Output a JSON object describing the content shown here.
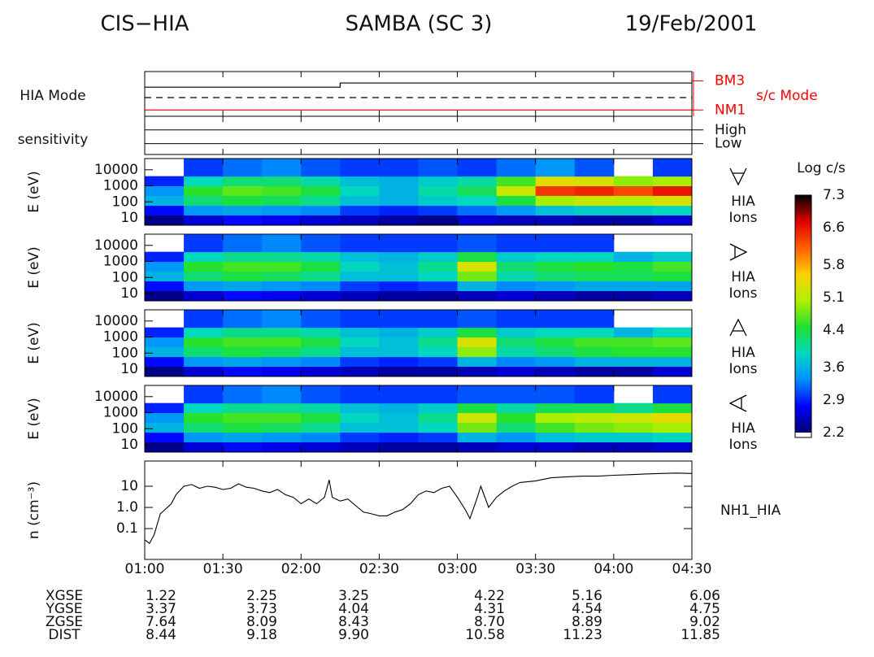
{
  "header": {
    "left": "CIS−HIA",
    "center": "SAMBA (SC 3)",
    "right": "19/Feb/2001"
  },
  "chart_data": [
    {
      "type": "step",
      "ylabel": "HIA Mode",
      "xlim": [
        1,
        4.5
      ],
      "ylim": [
        -3,
        18.5
      ],
      "yticks": [
        0,
        15
      ],
      "y2label": "s/c Mode",
      "y2color": "#ff0000",
      "y2lim": [
        -3,
        18.5
      ],
      "y2ticks": [
        {
          "value": 0,
          "label": "NM1"
        },
        {
          "value": 14,
          "label": "BM3"
        }
      ],
      "series": [
        {
          "color": "#000000",
          "dash": false,
          "x": [
            1,
            2.25,
            2.25,
            4.5
          ],
          "values": [
            11,
            11,
            13,
            13
          ]
        },
        {
          "color": "#000000",
          "dash": true,
          "x": [
            1,
            4.5
          ],
          "values": [
            6,
            6
          ]
        },
        {
          "color": "#ff0000",
          "dash": false,
          "x": [
            1,
            4.5
          ],
          "values": [
            0,
            0
          ]
        }
      ]
    },
    {
      "type": "level",
      "ylabel": "sensitivity",
      "xlim": [
        1,
        4.5
      ],
      "levels": [
        "High",
        "Low"
      ],
      "grid": true
    },
    {
      "type": "spectrogram",
      "ylabel": "E (eV)",
      "label_lines": [
        "HIA",
        "Ions"
      ],
      "icon": "down",
      "xlim": [
        1,
        4.5
      ],
      "ylog": true,
      "ylim": [
        3.5,
        50000
      ],
      "yticks": [
        10,
        100,
        1000,
        10000
      ],
      "time_bins": [
        1,
        1.25,
        1.5,
        1.75,
        2,
        2.25,
        2.5,
        2.75,
        3,
        3.25,
        3.5,
        3.75,
        4,
        4.25,
        4.5
      ],
      "energy_bins": [
        3.5,
        15,
        60,
        250,
        1000,
        4000,
        50000
      ],
      "values": [
        [
          2.3,
          2.6,
          2.8,
          2.7,
          2.6,
          2.5,
          2.4,
          2.3,
          2.6,
          2.5,
          2.5,
          2.4,
          2.4,
          2.6
        ],
        [
          2.8,
          3.4,
          3.5,
          3.4,
          3.3,
          3.0,
          2.9,
          3.0,
          3.2,
          3.4,
          3.7,
          3.8,
          3.8,
          3.9
        ],
        [
          3.6,
          4.2,
          4.4,
          4.3,
          4.1,
          3.7,
          3.6,
          3.8,
          3.9,
          4.4,
          5.0,
          5.2,
          5.1,
          5.3
        ],
        [
          3.4,
          4.5,
          4.7,
          4.6,
          4.4,
          3.9,
          3.6,
          4.0,
          4.3,
          5.2,
          6.4,
          6.5,
          6.3,
          6.6
        ],
        [
          2.9,
          3.9,
          4.2,
          4.2,
          4.0,
          3.7,
          3.6,
          3.8,
          4.0,
          4.6,
          5.4,
          5.3,
          4.9,
          5.0
        ],
        [
          null,
          3.0,
          3.2,
          3.3,
          3.1,
          3.0,
          3.0,
          3.1,
          3.0,
          3.2,
          3.4,
          3.1,
          null,
          3.0
        ]
      ]
    },
    {
      "type": "spectrogram",
      "ylabel": "E (eV)",
      "label_lines": [
        "HIA",
        "Ions"
      ],
      "icon": "right",
      "xlim": [
        1,
        4.5
      ],
      "ylog": true,
      "ylim": [
        3.5,
        50000
      ],
      "yticks": [
        10,
        100,
        1000,
        10000
      ],
      "time_bins": [
        1,
        1.25,
        1.5,
        1.75,
        2,
        2.25,
        2.5,
        2.75,
        3,
        3.25,
        3.5,
        3.75,
        4,
        4.25,
        4.5
      ],
      "energy_bins": [
        3.5,
        15,
        60,
        250,
        1000,
        4000,
        50000
      ],
      "values": [
        [
          2.3,
          2.6,
          2.8,
          2.7,
          2.6,
          2.5,
          2.4,
          2.4,
          2.5,
          2.6,
          2.5,
          2.4,
          2.4,
          2.5
        ],
        [
          2.8,
          3.4,
          3.5,
          3.4,
          3.3,
          3.0,
          2.9,
          3.0,
          3.6,
          3.3,
          3.4,
          3.5,
          3.5,
          3.5
        ],
        [
          3.6,
          4.2,
          4.4,
          4.3,
          4.1,
          3.7,
          3.7,
          3.9,
          4.8,
          4.0,
          4.2,
          4.3,
          4.3,
          4.4
        ],
        [
          3.4,
          4.5,
          4.6,
          4.6,
          4.4,
          3.9,
          3.7,
          4.1,
          5.3,
          4.2,
          4.4,
          4.5,
          4.4,
          4.6
        ],
        [
          2.9,
          3.9,
          4.1,
          4.1,
          4.0,
          3.7,
          3.6,
          3.8,
          4.4,
          3.8,
          3.9,
          3.9,
          3.6,
          3.8
        ],
        [
          null,
          3.0,
          3.2,
          3.3,
          3.1,
          3.0,
          3.0,
          3.0,
          3.1,
          3.0,
          3.0,
          3.0,
          null,
          null
        ]
      ]
    },
    {
      "type": "spectrogram",
      "ylabel": "E (eV)",
      "label_lines": [
        "HIA",
        "Ions"
      ],
      "icon": "up",
      "xlim": [
        1,
        4.5
      ],
      "ylog": true,
      "ylim": [
        3.5,
        50000
      ],
      "yticks": [
        10,
        100,
        1000,
        10000
      ],
      "time_bins": [
        1,
        1.25,
        1.5,
        1.75,
        2,
        2.25,
        2.5,
        2.75,
        3,
        3.25,
        3.5,
        3.75,
        4,
        4.25,
        4.5
      ],
      "energy_bins": [
        3.5,
        15,
        60,
        250,
        1000,
        4000,
        50000
      ],
      "values": [
        [
          2.3,
          2.6,
          2.8,
          2.7,
          2.6,
          2.5,
          2.4,
          2.4,
          2.5,
          2.6,
          2.5,
          2.4,
          2.4,
          2.6
        ],
        [
          2.8,
          3.4,
          3.5,
          3.4,
          3.3,
          3.0,
          2.9,
          3.0,
          3.6,
          3.3,
          3.4,
          3.6,
          3.6,
          3.6
        ],
        [
          3.6,
          4.2,
          4.4,
          4.3,
          4.1,
          3.7,
          3.7,
          3.9,
          4.9,
          4.0,
          4.2,
          4.4,
          4.5,
          4.5
        ],
        [
          3.4,
          4.5,
          4.6,
          4.6,
          4.4,
          3.9,
          3.7,
          4.1,
          5.3,
          4.2,
          4.4,
          4.6,
          4.6,
          4.7
        ],
        [
          2.9,
          3.9,
          4.1,
          4.1,
          4.0,
          3.7,
          3.6,
          3.8,
          4.4,
          3.8,
          3.9,
          3.9,
          3.6,
          3.9
        ],
        [
          null,
          3.0,
          3.2,
          3.3,
          3.1,
          3.0,
          3.0,
          3.0,
          3.1,
          3.0,
          3.0,
          3.0,
          null,
          null
        ]
      ]
    },
    {
      "type": "spectrogram",
      "ylabel": "E (eV)",
      "label_lines": [
        "HIA",
        "Ions"
      ],
      "icon": "left",
      "xlim": [
        1,
        4.5
      ],
      "ylog": true,
      "ylim": [
        3.5,
        50000
      ],
      "yticks": [
        10,
        100,
        1000,
        10000
      ],
      "time_bins": [
        1,
        1.25,
        1.5,
        1.75,
        2,
        2.25,
        2.5,
        2.75,
        3,
        3.25,
        3.5,
        3.75,
        4,
        4.25,
        4.5
      ],
      "energy_bins": [
        3.5,
        15,
        60,
        250,
        1000,
        4000,
        50000
      ],
      "values": [
        [
          2.3,
          2.6,
          2.8,
          2.7,
          2.6,
          2.5,
          2.4,
          2.4,
          2.5,
          2.6,
          2.6,
          2.5,
          2.5,
          2.6
        ],
        [
          2.8,
          3.4,
          3.5,
          3.4,
          3.3,
          3.0,
          2.9,
          3.0,
          3.6,
          3.4,
          3.7,
          3.8,
          3.8,
          3.9
        ],
        [
          3.6,
          4.2,
          4.4,
          4.3,
          4.1,
          3.7,
          3.7,
          3.9,
          4.8,
          4.2,
          4.6,
          4.8,
          4.9,
          5.0
        ],
        [
          3.4,
          4.5,
          4.6,
          4.6,
          4.4,
          3.9,
          3.7,
          4.1,
          5.2,
          4.5,
          5.0,
          5.1,
          5.2,
          5.4
        ],
        [
          2.9,
          3.9,
          4.1,
          4.1,
          4.0,
          3.7,
          3.6,
          3.8,
          4.4,
          4.0,
          4.3,
          4.3,
          4.1,
          4.4
        ],
        [
          null,
          3.0,
          3.2,
          3.3,
          3.1,
          3.0,
          3.0,
          3.0,
          3.1,
          3.1,
          3.1,
          3.0,
          null,
          3.0
        ]
      ]
    },
    {
      "type": "line",
      "ylabel": "n (cm⁻³)",
      "label": "NH1_HIA",
      "color": "#000000",
      "xlim": [
        1,
        4.5
      ],
      "ylog": true,
      "ylim": [
        0.0035,
        155
      ],
      "yticks": [
        0.1,
        {
          "value": 1,
          "label": "1.0"
        },
        10
      ],
      "xticks": [
        {
          "value": 1,
          "label": "01:00"
        },
        {
          "value": 1.5,
          "label": "01:30"
        },
        {
          "value": 2,
          "label": "02:00"
        },
        {
          "value": 2.5,
          "label": "02:30"
        },
        {
          "value": 3,
          "label": "03:00"
        },
        {
          "value": 3.5,
          "label": "03:30"
        },
        {
          "value": 4,
          "label": "04:00"
        },
        {
          "value": 4.5,
          "label": "04:30"
        }
      ],
      "x": [
        1.0,
        1.03,
        1.06,
        1.1,
        1.13,
        1.17,
        1.2,
        1.25,
        1.3,
        1.35,
        1.4,
        1.45,
        1.5,
        1.55,
        1.6,
        1.65,
        1.7,
        1.75,
        1.8,
        1.85,
        1.9,
        1.95,
        2.0,
        2.05,
        2.1,
        2.15,
        2.18,
        2.2,
        2.25,
        2.3,
        2.35,
        2.4,
        2.45,
        2.5,
        2.55,
        2.6,
        2.65,
        2.7,
        2.75,
        2.8,
        2.85,
        2.9,
        2.95,
        3.0,
        3.05,
        3.08,
        3.12,
        3.15,
        3.2,
        3.25,
        3.3,
        3.35,
        3.4,
        3.5,
        3.6,
        3.7,
        3.8,
        3.9,
        4.0,
        4.1,
        4.2,
        4.3,
        4.4,
        4.5
      ],
      "values": [
        0.03,
        0.02,
        0.05,
        0.5,
        0.8,
        1.5,
        4,
        10,
        12,
        8,
        10,
        9,
        7,
        8,
        13,
        9,
        8,
        6,
        5,
        7,
        4,
        3,
        1.5,
        2.5,
        1.5,
        3,
        20,
        3,
        2,
        2.5,
        1.2,
        0.6,
        0.5,
        0.4,
        0.4,
        0.6,
        0.8,
        1.5,
        4,
        6,
        5,
        8,
        10,
        3,
        0.8,
        0.3,
        2,
        10,
        1,
        3,
        6,
        10,
        15,
        18,
        25,
        28,
        30,
        30,
        33,
        35,
        38,
        40,
        42,
        40
      ]
    }
  ],
  "colorbar": {
    "title": "Log c/s",
    "clim": [
      2.2,
      7.3
    ],
    "ticks": [
      7.3,
      6.6,
      5.8,
      5.1,
      4.4,
      3.6,
      2.9,
      2.2
    ],
    "colors": [
      "#000070",
      "#0000ff",
      "#0090ff",
      "#00d8c0",
      "#20e030",
      "#b0f000",
      "#ffd000",
      "#ff6000",
      "#e00000",
      "#000000"
    ]
  },
  "ephemeris": {
    "rows": [
      {
        "label": "XGSE",
        "values": [
          "1.22",
          "2.25",
          "3.25",
          "4.22",
          "5.16",
          "6.06"
        ]
      },
      {
        "label": "YGSE",
        "values": [
          "3.37",
          "3.73",
          "4.04",
          "4.31",
          "4.54",
          "4.75"
        ]
      },
      {
        "label": "ZGSE",
        "values": [
          "7.64",
          "8.09",
          "8.43",
          "8.70",
          "8.89",
          "9.02"
        ]
      },
      {
        "label": "DIST",
        "values": [
          "8.44",
          "9.18",
          "9.90",
          "10.58",
          "11.23",
          "11.85"
        ]
      }
    ]
  }
}
